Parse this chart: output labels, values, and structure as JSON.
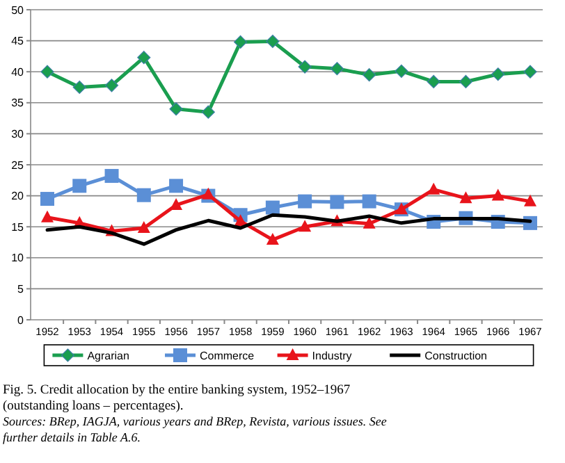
{
  "chart_data": {
    "type": "line",
    "title": "Fig. 5. Credit allocation by the entire banking system, 1952–1967 (outstanding loans – percentages).",
    "annotations": [
      "Sources: BRep, IAGJA, various years and BRep, Revista, various issues. See further details in Table A.6."
    ],
    "categories": [
      "1952",
      "1953",
      "1954",
      "1955",
      "1956",
      "1957",
      "1958",
      "1959",
      "1960",
      "1961",
      "1962",
      "1963",
      "1964",
      "1965",
      "1966",
      "1967"
    ],
    "series": [
      {
        "name": "Agrarian",
        "color": "#1a9e4f",
        "marker": "diamond",
        "values": [
          40,
          37.5,
          37.8,
          42.3,
          34,
          33.5,
          44.8,
          44.9,
          40.8,
          40.5,
          39.5,
          40.1,
          38.4,
          38.4,
          39.6,
          40
        ]
      },
      {
        "name": "Commerce",
        "color": "#5b8fd6",
        "marker": "square",
        "values": [
          19.5,
          21.6,
          23.2,
          20.1,
          21.6,
          20,
          16.9,
          18.1,
          19.1,
          19,
          19.1,
          17.8,
          15.8,
          16.4,
          15.8,
          15.6
        ]
      },
      {
        "name": "Industry",
        "color": "#e8141b",
        "marker": "triangle",
        "values": [
          16.5,
          15.6,
          14.3,
          14.8,
          18.5,
          20.2,
          15.9,
          12.9,
          15,
          15.9,
          15.5,
          17.8,
          21,
          19.6,
          20,
          19.1
        ]
      },
      {
        "name": "Construction",
        "color": "#000000",
        "marker": "none",
        "values": [
          14.5,
          15,
          14,
          12.2,
          14.5,
          16,
          14.8,
          16.9,
          16.6,
          15.9,
          16.7,
          15.6,
          16.3,
          16.3,
          16.3,
          15.9
        ]
      }
    ],
    "ylim": [
      0,
      50
    ],
    "yticks": [
      0,
      5,
      10,
      15,
      20,
      25,
      30,
      35,
      40,
      45,
      50
    ],
    "grid": "y",
    "legend": "bottom"
  }
}
